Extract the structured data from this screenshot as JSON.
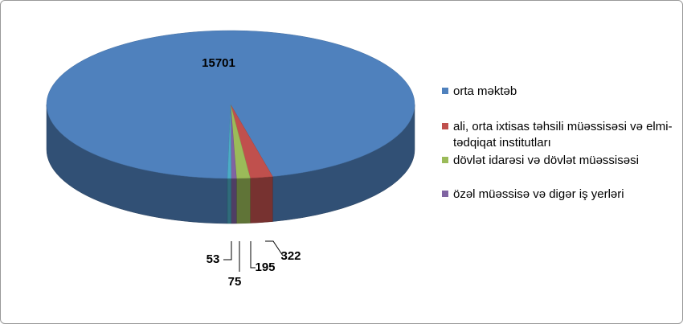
{
  "chart_data": {
    "type": "pie3d",
    "categories": [
      "orta məktəb",
      "ali, orta ixtisas təhsili müəssisəsi və elmi-tədqiqat institutları",
      "dövlət idarəsi və dövlət müəssisəsi",
      "özəl müəssisə və digər iş yerləri",
      null
    ],
    "values": [
      15701,
      322,
      195,
      75,
      53
    ],
    "colors": [
      "#4f81bd",
      "#c0504d",
      "#9bbb59",
      "#8064a2",
      "#4bacc6"
    ],
    "legend": "right"
  }
}
